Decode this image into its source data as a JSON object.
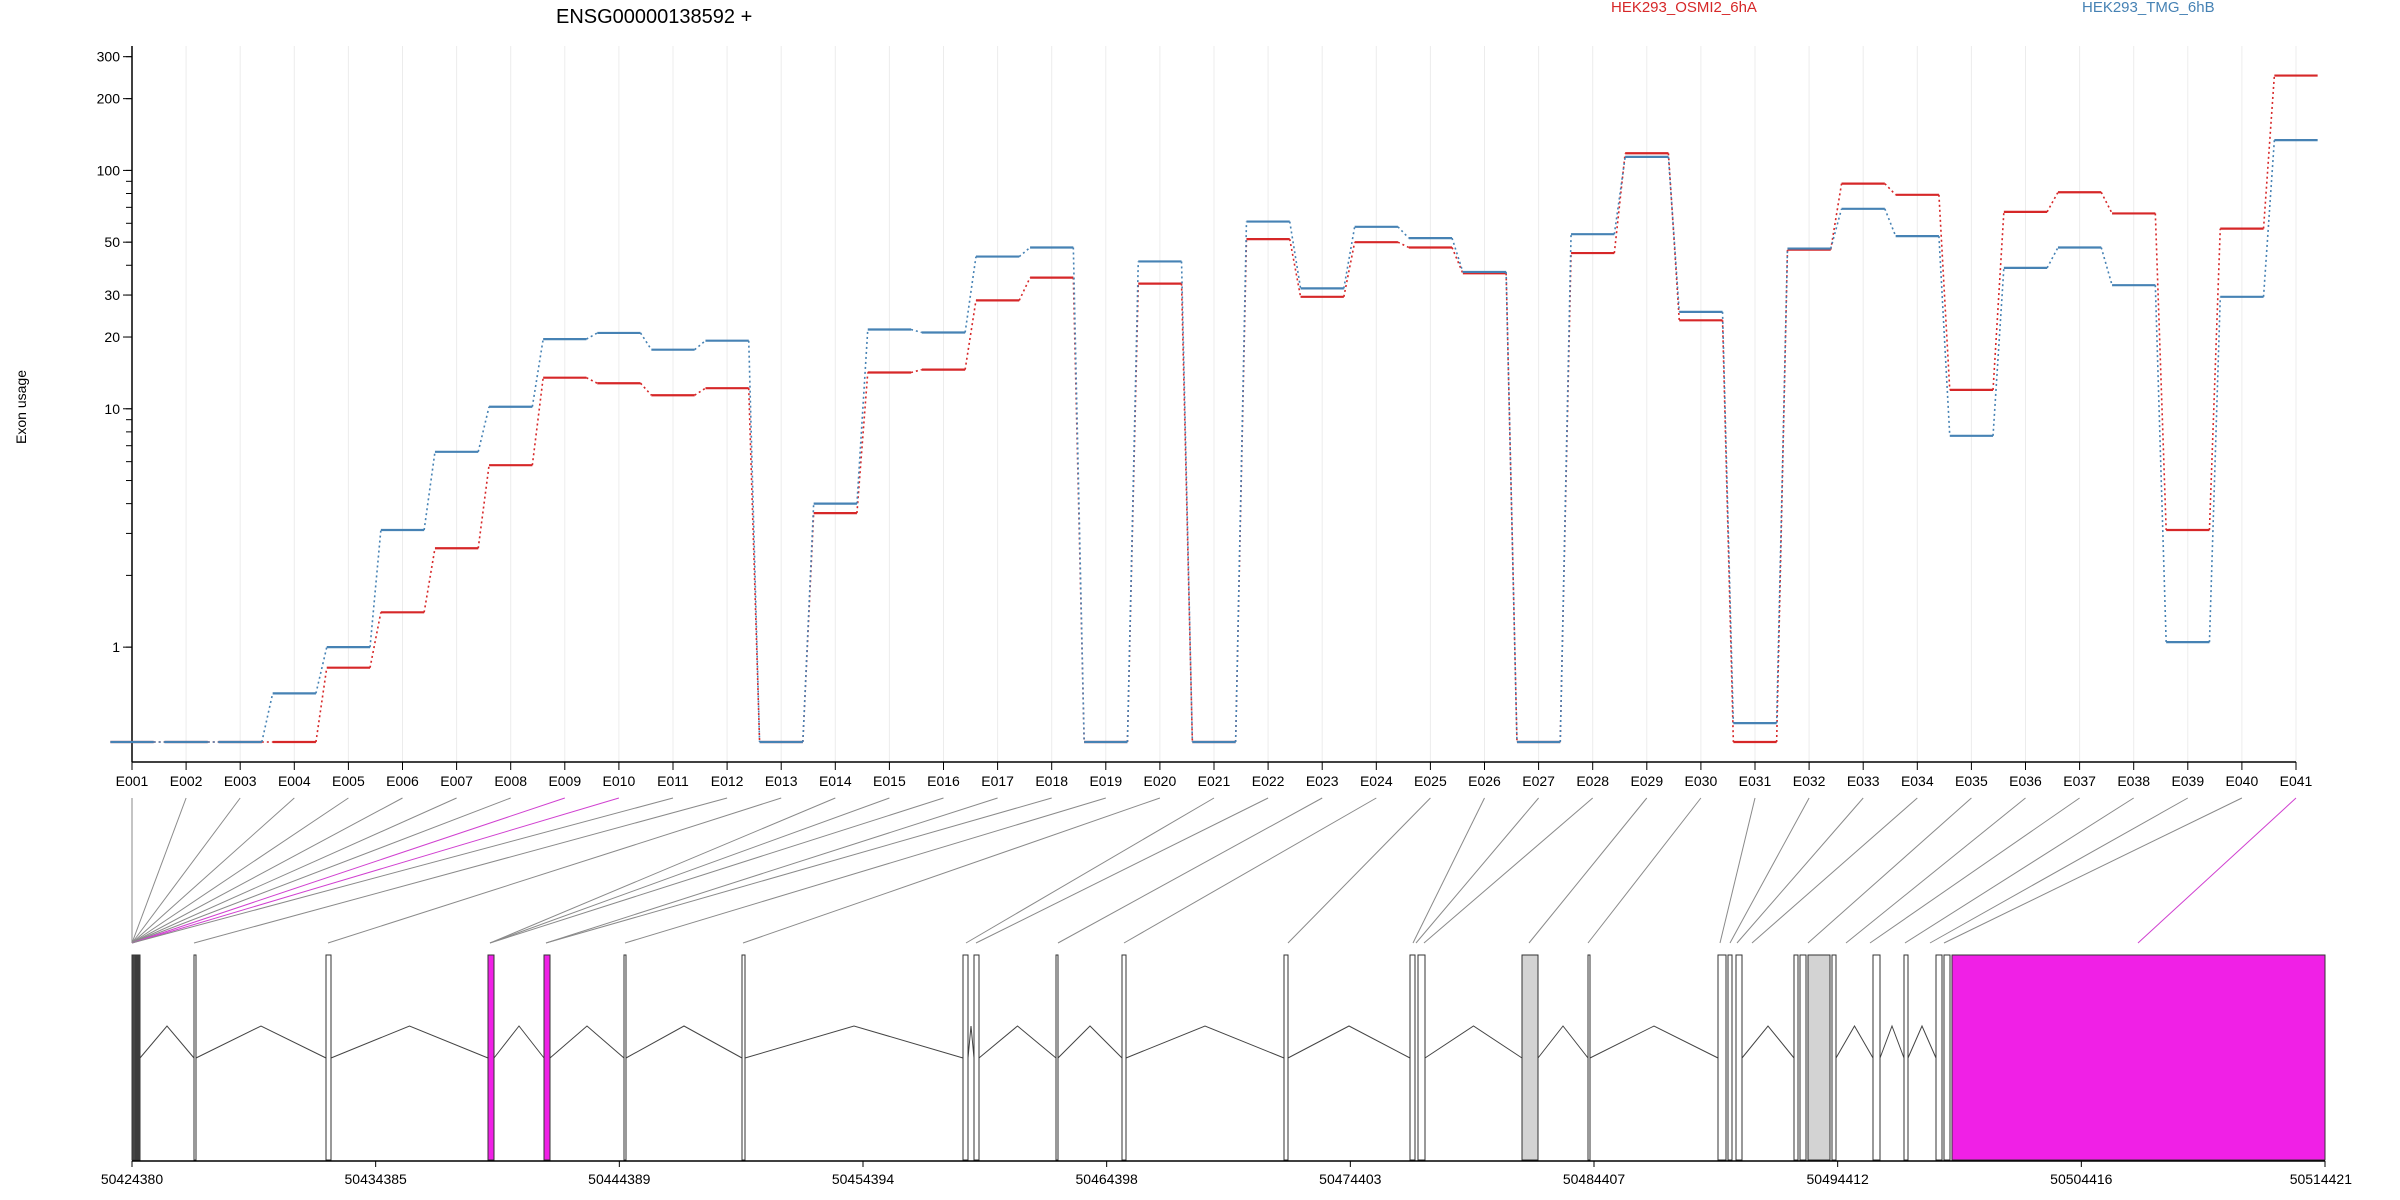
{
  "chart_data": {
    "type": "line",
    "title": "ENSG00000138592 +",
    "ylabel": "Exon usage",
    "yscale": "log",
    "ylim": [
      0.4,
      320
    ],
    "yticks": [
      1,
      10,
      20,
      30,
      50,
      100,
      200,
      300
    ],
    "yticklabels": [
      "1",
      "10",
      "20",
      "30",
      "50",
      "100",
      "200",
      "300"
    ],
    "grid": "vertical",
    "legend": "top",
    "categories": [
      "E001",
      "E002",
      "E003",
      "E004",
      "E005",
      "E006",
      "E007",
      "E008",
      "E009",
      "E010",
      "E011",
      "E012",
      "E013",
      "E014",
      "E015",
      "E016",
      "E017",
      "E018",
      "E019",
      "E020",
      "E021",
      "E022",
      "E023",
      "E024",
      "E025",
      "E026",
      "E027",
      "E028",
      "E029",
      "E030",
      "E031",
      "E032",
      "E033",
      "E034",
      "E035",
      "E036",
      "E037",
      "E038",
      "E039",
      "E040",
      "E041"
    ],
    "series": [
      {
        "name": "HEK293_OSMI2_6hA",
        "color": "#d62728",
        "values": [
          0.4,
          0.4,
          0.4,
          0.4,
          0.82,
          1.4,
          2.6,
          5.8,
          13.5,
          12.8,
          11.4,
          12.2,
          0.4,
          3.65,
          14.2,
          14.6,
          28.5,
          35.5,
          0.4,
          33.5,
          0.4,
          51.5,
          29.5,
          50,
          47.5,
          37,
          0.4,
          45,
          118,
          23.5,
          0.4,
          46.5,
          88,
          79,
          12,
          67,
          81,
          66,
          3.1,
          57,
          250
        ]
      },
      {
        "name": "HEK293_TMG_6hB",
        "color": "#4682b4",
        "values": [
          0.4,
          0.4,
          0.4,
          0.64,
          1.0,
          3.1,
          6.6,
          10.2,
          19.6,
          20.8,
          17.7,
          19.3,
          0.4,
          4.0,
          21.5,
          20.9,
          43.5,
          47.5,
          0.4,
          41.5,
          0.4,
          61,
          32,
          58,
          52,
          37.5,
          0.4,
          54,
          114,
          25.5,
          0.48,
          47,
          69,
          53,
          7.7,
          39,
          47.5,
          33,
          1.05,
          29.5,
          134
        ]
      }
    ],
    "gene_model": {
      "coord_labels": [
        "50424380",
        "50434385",
        "50444389",
        "50454394",
        "50464398",
        "50474403",
        "50484407",
        "50494412",
        "50504416",
        "50514421"
      ]
    }
  }
}
